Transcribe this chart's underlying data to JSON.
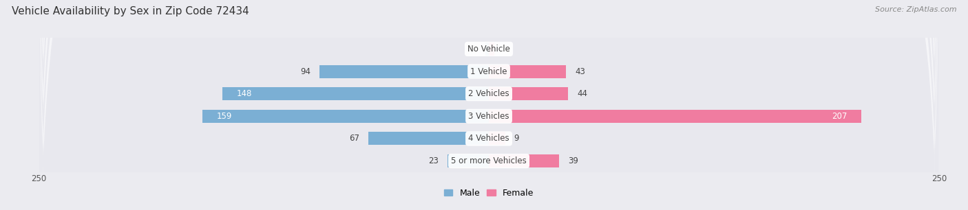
{
  "title": "Vehicle Availability by Sex in Zip Code 72434",
  "source": "Source: ZipAtlas.com",
  "categories": [
    "No Vehicle",
    "1 Vehicle",
    "2 Vehicles",
    "3 Vehicles",
    "4 Vehicles",
    "5 or more Vehicles"
  ],
  "male_values": [
    2,
    94,
    148,
    159,
    67,
    23
  ],
  "female_values": [
    3,
    43,
    44,
    207,
    9,
    39
  ],
  "male_color": "#7bafd4",
  "female_color": "#f07ca0",
  "male_label": "Male",
  "female_label": "Female",
  "xlim": 250,
  "bg_color": "#ebebf0",
  "row_bg_odd": "#f5f5f8",
  "row_bg_even": "#e8e8ee",
  "bar_height": 0.58,
  "title_fontsize": 11,
  "source_fontsize": 8,
  "label_fontsize": 8.5,
  "tick_fontsize": 8.5,
  "legend_fontsize": 9
}
